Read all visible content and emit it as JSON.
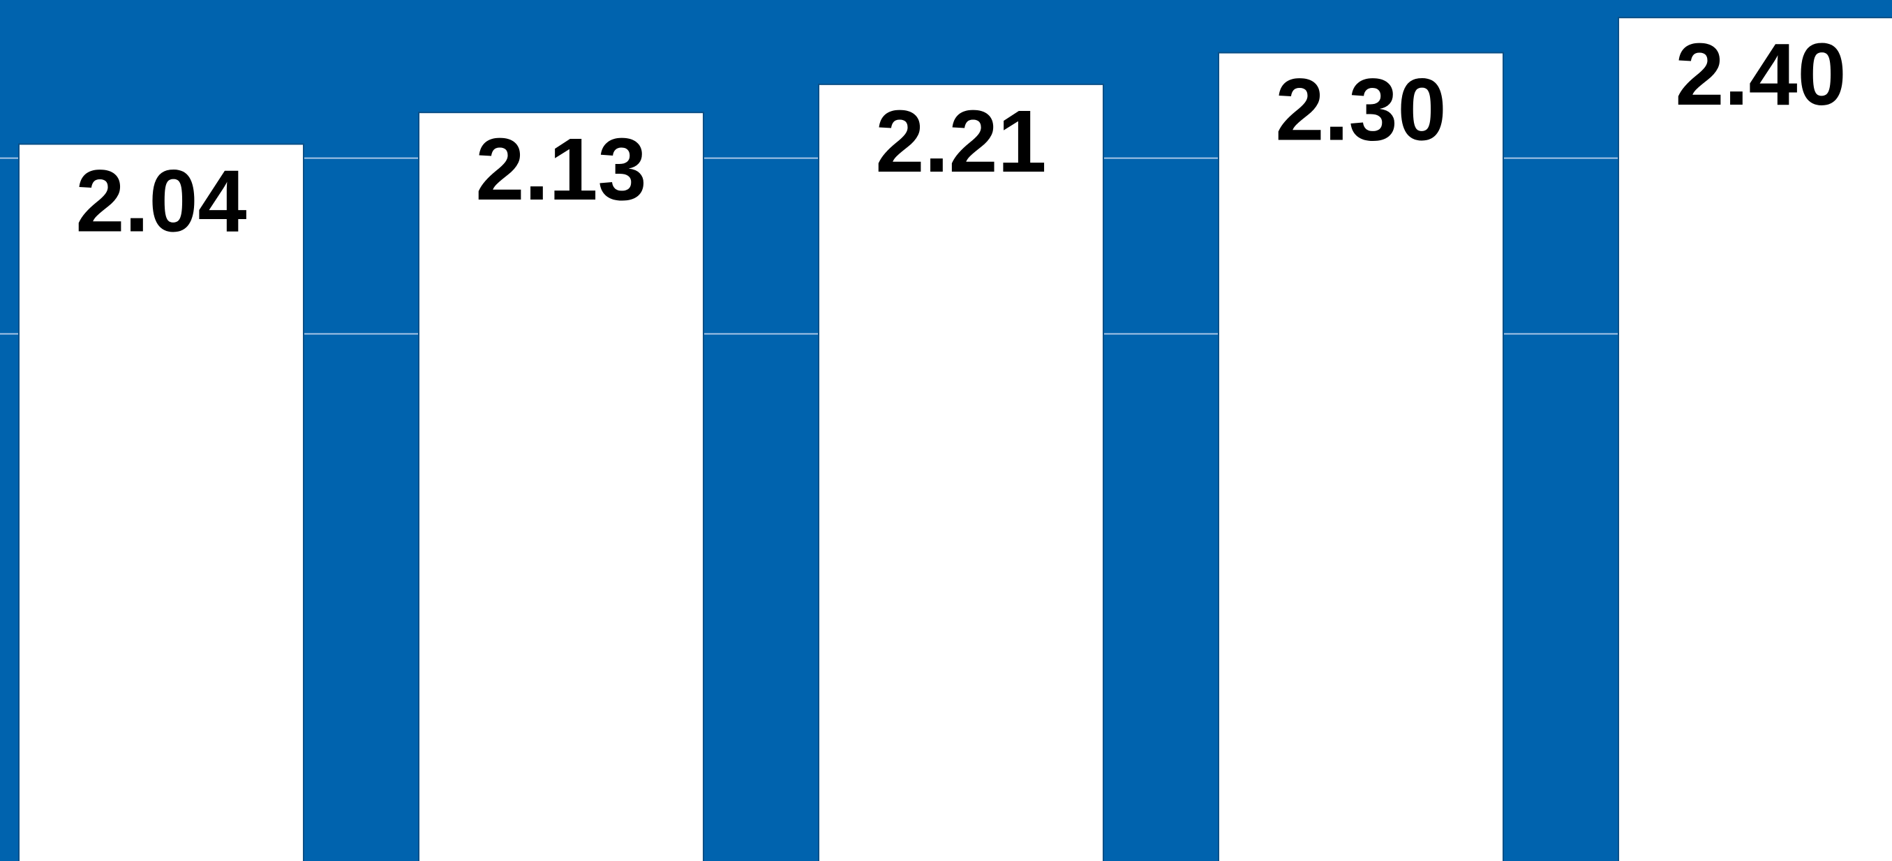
{
  "chart_data": {
    "type": "bar",
    "categories": [
      "",
      "",
      "",
      "",
      ""
    ],
    "values": [
      2.04,
      2.13,
      2.21,
      2.3,
      2.4
    ],
    "data_labels": [
      "2.04",
      "2.13",
      "2.21",
      "2.30",
      "2.40"
    ],
    "title": "",
    "xlabel": "",
    "ylabel": "",
    "ylim": [
      0,
      2.45
    ],
    "grid": true,
    "colors": {
      "background": "#0063ae",
      "bar_fill": "#ffffff",
      "bar_border": "#0b4f86",
      "gridline": "#a9c6e6",
      "label": "#000000"
    }
  }
}
